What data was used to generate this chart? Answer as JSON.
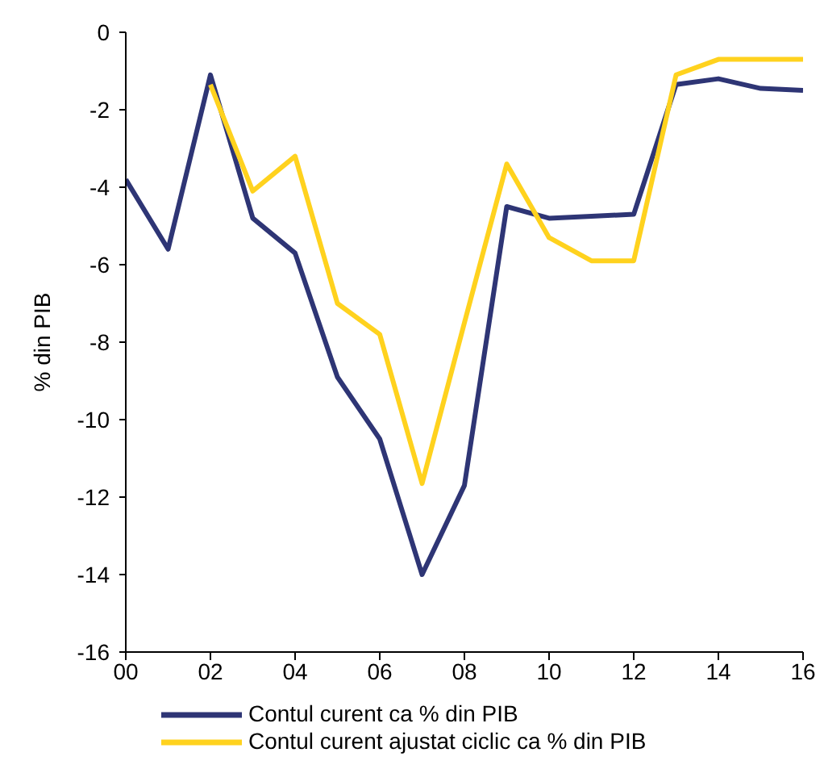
{
  "chart_data": {
    "type": "line",
    "ylabel": "% din PIB",
    "x": [
      2000,
      2001,
      2002,
      2003,
      2004,
      2005,
      2006,
      2007,
      2008,
      2009,
      2010,
      2011,
      2012,
      2013,
      2014,
      2015,
      2016
    ],
    "series": [
      {
        "name": "Contul curent ca % din PIB",
        "color": "#2e3575",
        "values": [
          -3.8,
          -5.6,
          -1.1,
          -4.8,
          -5.7,
          -8.9,
          -10.5,
          -14.0,
          -11.7,
          -4.5,
          -4.8,
          -4.75,
          -4.7,
          -1.35,
          -1.2,
          -1.45,
          -1.5
        ]
      },
      {
        "name": "Contul curent ajustat ciclic ca % din PIB",
        "color": "#ffd21e",
        "values": [
          null,
          null,
          -1.35,
          -4.1,
          -3.2,
          -7.0,
          -7.8,
          -11.65,
          -7.5,
          -3.4,
          -5.3,
          -5.9,
          -5.9,
          -1.1,
          -0.7,
          -0.7,
          -0.7
        ]
      }
    ],
    "xlim": [
      2000,
      2016
    ],
    "xticks": [
      {
        "value": 2000,
        "label": "00"
      },
      {
        "value": 2002,
        "label": "02"
      },
      {
        "value": 2004,
        "label": "04"
      },
      {
        "value": 2006,
        "label": "06"
      },
      {
        "value": 2008,
        "label": "08"
      },
      {
        "value": 2010,
        "label": "10"
      },
      {
        "value": 2012,
        "label": "12"
      },
      {
        "value": 2014,
        "label": "14"
      },
      {
        "value": 2016,
        "label": "16"
      }
    ],
    "ylim": [
      -16,
      0
    ],
    "yticks": [
      0,
      -2,
      -4,
      -6,
      -8,
      -10,
      -12,
      -14,
      -16
    ],
    "grid": false,
    "legend": "bottom",
    "marker": "none",
    "line_style": "solid"
  }
}
